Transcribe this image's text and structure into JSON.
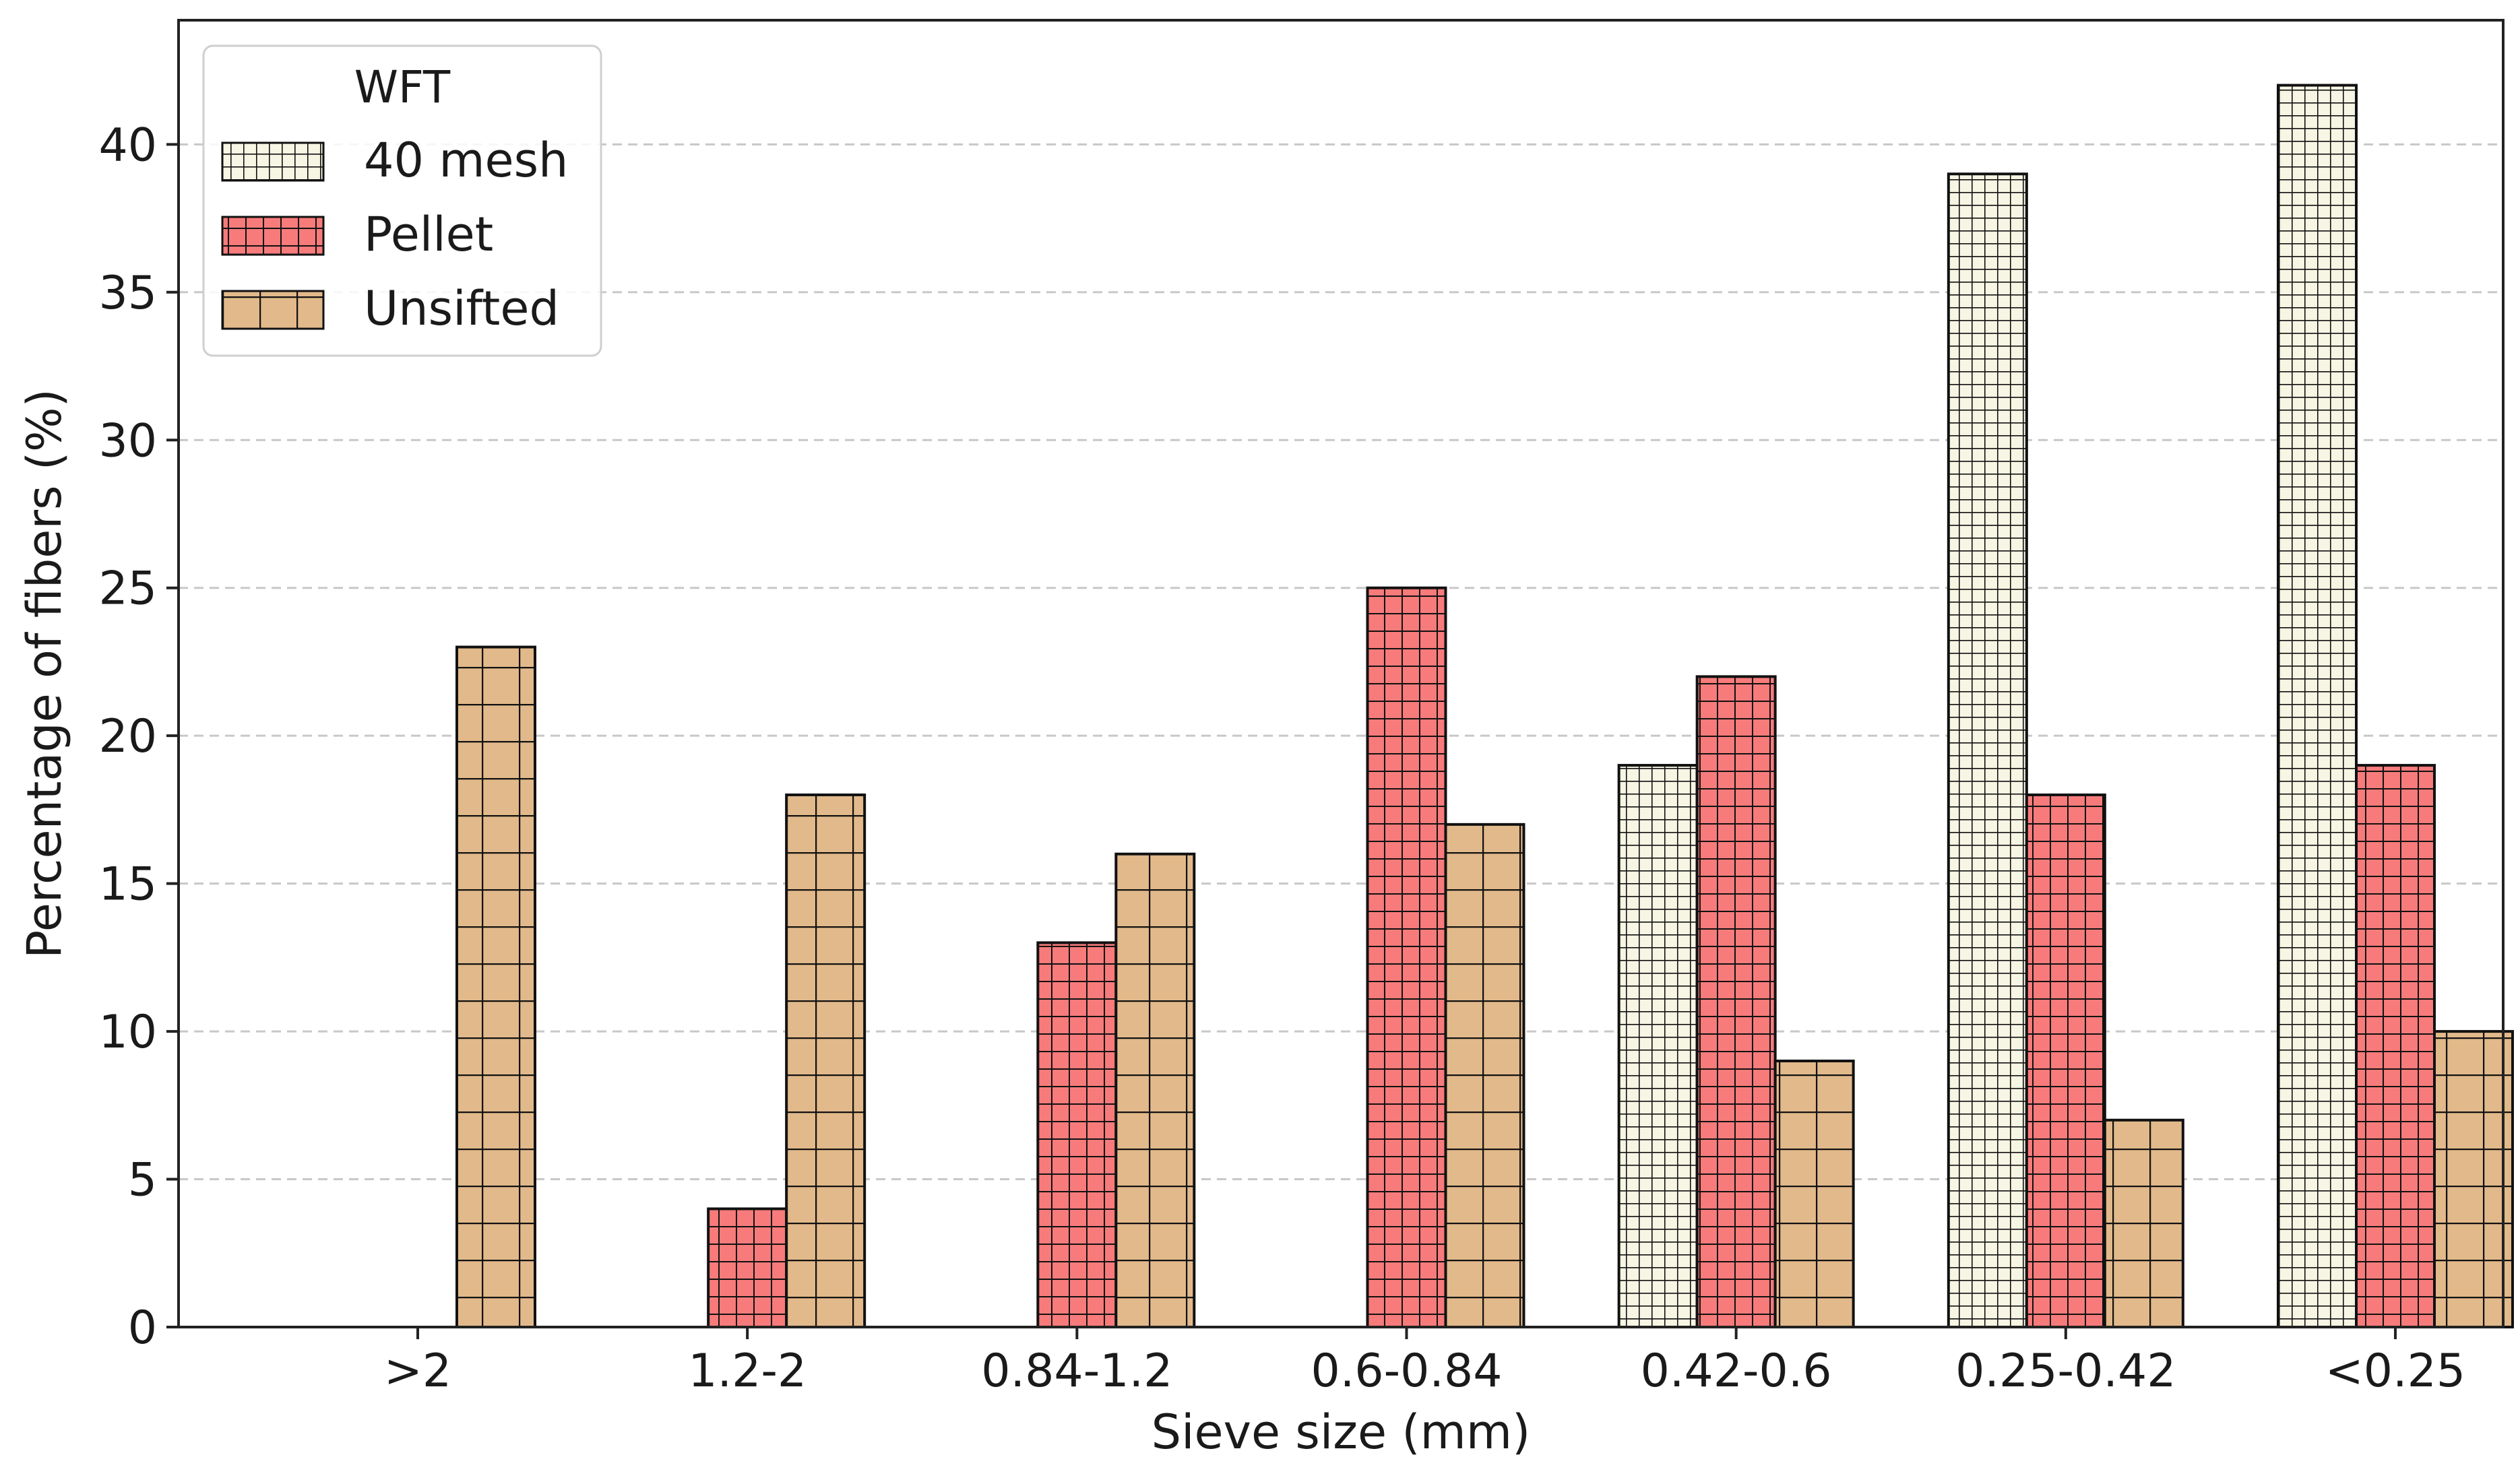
{
  "chart_data": {
    "type": "bar",
    "title": "",
    "xlabel": "Sieve size (mm)",
    "ylabel": "Percentage of fibers (%)",
    "ylim": [
      0,
      44.2
    ],
    "yticks": [
      0,
      5,
      10,
      15,
      20,
      25,
      30,
      35,
      40
    ],
    "grid": "y-dashed",
    "categories": [
      ">2",
      "1.2-2",
      "0.84-1.2",
      "0.6-0.84",
      "0.42-0.6",
      "0.25-0.42",
      "<0.25"
    ],
    "legend": {
      "title": "WFT",
      "placement": "top-left"
    },
    "series": [
      {
        "name": "40 mesh",
        "values": [
          0,
          0,
          0,
          0,
          19,
          39,
          42
        ],
        "color": "#f7f5e3",
        "pattern": "fine-grid"
      },
      {
        "name": "Pellet",
        "values": [
          0,
          4,
          13,
          25,
          22,
          18,
          19
        ],
        "color": "#f77b7b",
        "pattern": "medium-grid"
      },
      {
        "name": "Unsifted",
        "values": [
          23,
          18,
          16,
          17,
          9,
          7,
          10
        ],
        "color": "#e2b98a",
        "pattern": "coarse-grid"
      }
    ]
  }
}
